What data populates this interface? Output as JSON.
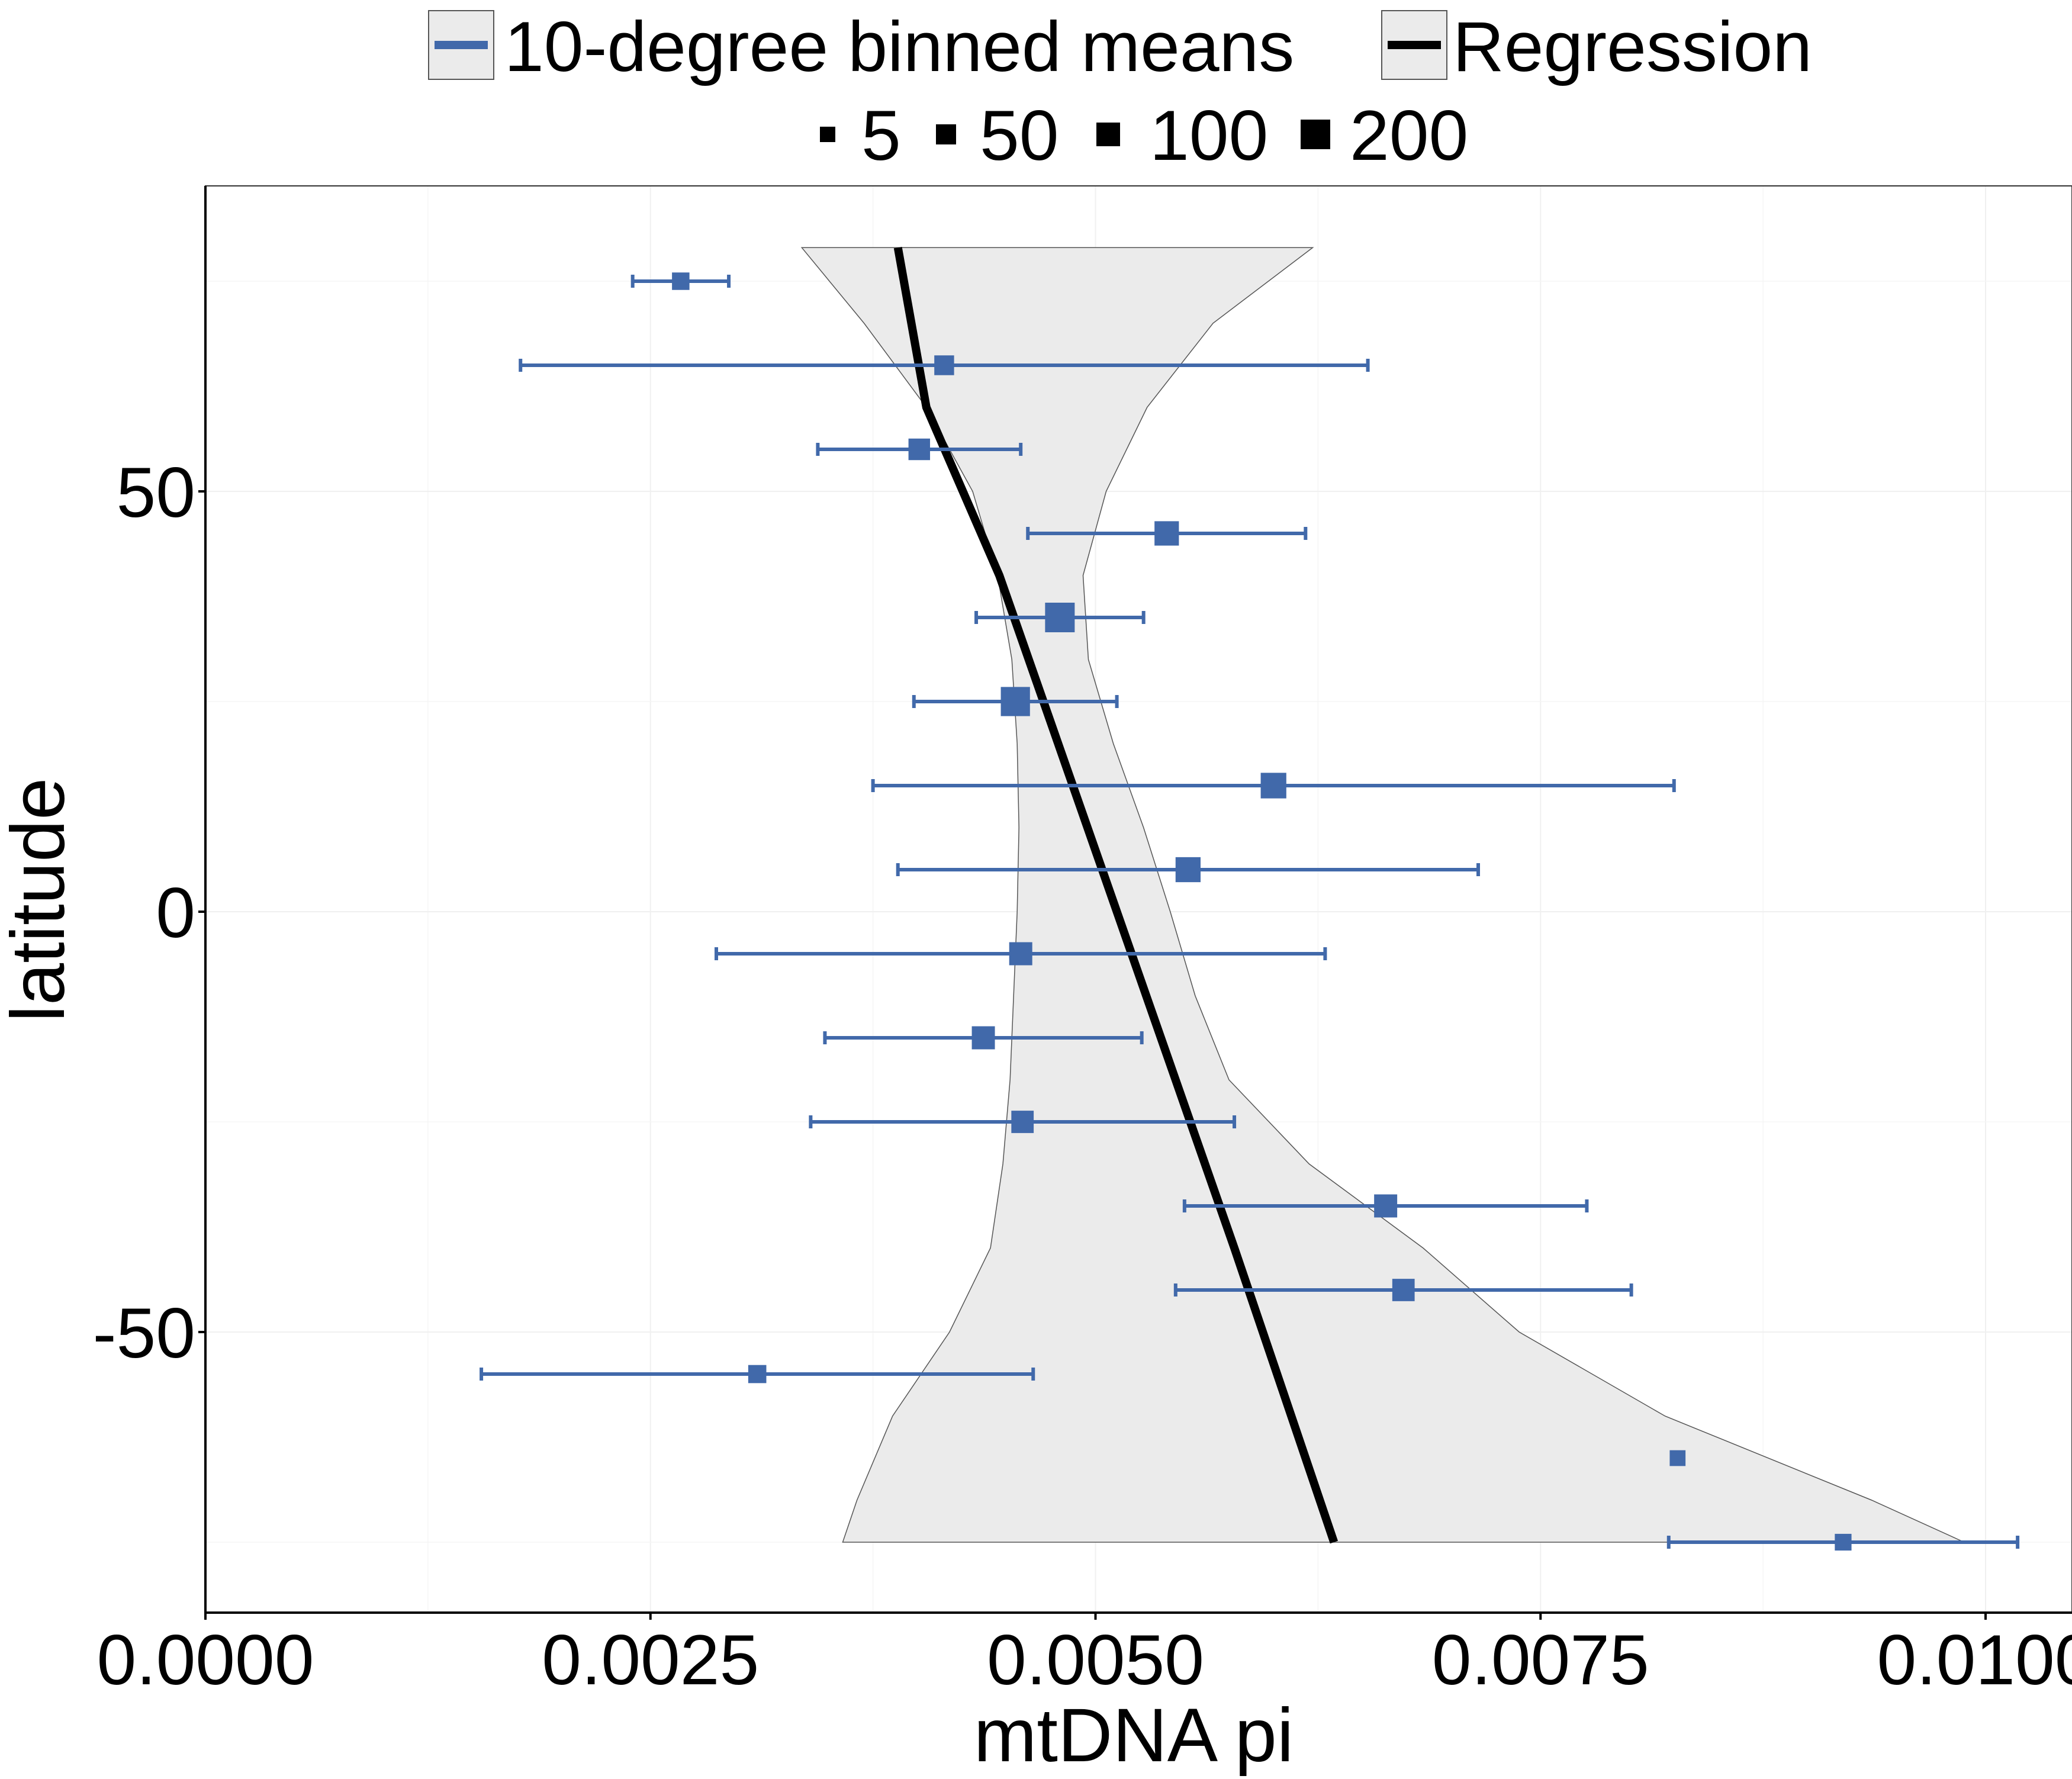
{
  "chart_data": {
    "type": "scatter",
    "title": "",
    "xlabel": "mtDNA pi",
    "ylabel": "latitude",
    "xlim": [
      0.0,
      0.01
    ],
    "ylim": [
      -82,
      87
    ],
    "x_ticks": [
      0.0,
      0.0025,
      0.005,
      0.0075,
      0.01
    ],
    "x_tick_labels": [
      "0.0000",
      "0.0025",
      "0.0050",
      "0.0075",
      "0.0100"
    ],
    "y_ticks": [
      -50,
      0,
      50
    ],
    "y_tick_labels": [
      "-50",
      "0",
      "50"
    ],
    "grid": true,
    "legend": {
      "placement": "top",
      "row1": [
        {
          "label": "10-degree binned means",
          "key": "binned-means"
        },
        {
          "label": "Regression",
          "key": "regression"
        }
      ],
      "size_entries": [
        {
          "label": "5",
          "size": 5
        },
        {
          "label": "50",
          "size": 50
        },
        {
          "label": "100",
          "size": 100
        },
        {
          "label": "200",
          "size": 200
        }
      ]
    },
    "colors": {
      "points": "#4169aa",
      "regression": "#000000",
      "band_fill": "#ebebeb",
      "band_stroke": "#555555"
    },
    "series": [
      {
        "name": "10-degree binned means",
        "points": [
          {
            "y": 75,
            "x": 0.00267,
            "xmin": 0.0024,
            "xmax": 0.00294,
            "n": 20
          },
          {
            "y": 65,
            "x": 0.00415,
            "xmin": 0.00177,
            "xmax": 0.00653,
            "n": 40
          },
          {
            "y": 55,
            "x": 0.00401,
            "xmin": 0.00344,
            "xmax": 0.00458,
            "n": 60
          },
          {
            "y": 45,
            "x": 0.0054,
            "xmin": 0.00462,
            "xmax": 0.00618,
            "n": 100
          },
          {
            "y": 35,
            "x": 0.0048,
            "xmin": 0.00433,
            "xmax": 0.00527,
            "n": 200
          },
          {
            "y": 25,
            "x": 0.00455,
            "xmin": 0.00398,
            "xmax": 0.00512,
            "n": 190
          },
          {
            "y": 15,
            "x": 0.006,
            "xmin": 0.00375,
            "xmax": 0.00825,
            "n": 120
          },
          {
            "y": 5,
            "x": 0.00552,
            "xmin": 0.00389,
            "xmax": 0.00715,
            "n": 110
          },
          {
            "y": -5,
            "x": 0.00458,
            "xmin": 0.00287,
            "xmax": 0.00629,
            "n": 80
          },
          {
            "y": -15,
            "x": 0.00437,
            "xmin": 0.00348,
            "xmax": 0.00526,
            "n": 80
          },
          {
            "y": -25,
            "x": 0.00459,
            "xmin": 0.0034,
            "xmax": 0.00578,
            "n": 70
          },
          {
            "y": -35,
            "x": 0.00663,
            "xmin": 0.0055,
            "xmax": 0.00776,
            "n": 80
          },
          {
            "y": -45,
            "x": 0.00673,
            "xmin": 0.00545,
            "xmax": 0.00801,
            "n": 70
          },
          {
            "y": -55,
            "x": 0.0031,
            "xmin": 0.00155,
            "xmax": 0.00465,
            "n": 25
          },
          {
            "y": -65,
            "x": 0.00827,
            "xmin": null,
            "xmax": null,
            "n": 10
          },
          {
            "y": -75,
            "x": 0.0092,
            "xmin": 0.00822,
            "xmax": 0.01018,
            "n": 15
          }
        ]
      },
      {
        "name": "Regression",
        "points": [
          {
            "y": 79,
            "x": 0.00389
          },
          {
            "y": 60,
            "x": 0.00405
          },
          {
            "y": 40,
            "x": 0.00446
          },
          {
            "y": 20,
            "x": 0.00479
          },
          {
            "y": 0,
            "x": 0.00512
          },
          {
            "y": -20,
            "x": 0.00545
          },
          {
            "y": -40,
            "x": 0.00578
          },
          {
            "y": -60,
            "x": 0.0061
          },
          {
            "y": -75,
            "x": 0.00634
          }
        ]
      }
    ],
    "confidence_band": [
      {
        "y": 79,
        "lo": 0.00335,
        "hi": 0.00622
      },
      {
        "y": 70,
        "lo": 0.0037,
        "hi": 0.00566
      },
      {
        "y": 60,
        "lo": 0.00405,
        "hi": 0.00529
      },
      {
        "y": 50,
        "lo": 0.00431,
        "hi": 0.00506
      },
      {
        "y": 40,
        "lo": 0.00445,
        "hi": 0.00493
      },
      {
        "y": 30,
        "lo": 0.00453,
        "hi": 0.00496
      },
      {
        "y": 20,
        "lo": 0.00456,
        "hi": 0.0051
      },
      {
        "y": 10,
        "lo": 0.00457,
        "hi": 0.00527
      },
      {
        "y": 0,
        "lo": 0.00456,
        "hi": 0.00542
      },
      {
        "y": -10,
        "lo": 0.00454,
        "hi": 0.00556
      },
      {
        "y": -20,
        "lo": 0.00452,
        "hi": 0.00575
      },
      {
        "y": -30,
        "lo": 0.00448,
        "hi": 0.0062
      },
      {
        "y": -40,
        "lo": 0.00441,
        "hi": 0.00684
      },
      {
        "y": -50,
        "lo": 0.00418,
        "hi": 0.00738
      },
      {
        "y": -60,
        "lo": 0.00386,
        "hi": 0.0082
      },
      {
        "y": -70,
        "lo": 0.00366,
        "hi": 0.00936
      },
      {
        "y": -75,
        "lo": 0.00358,
        "hi": 0.00988
      }
    ]
  }
}
